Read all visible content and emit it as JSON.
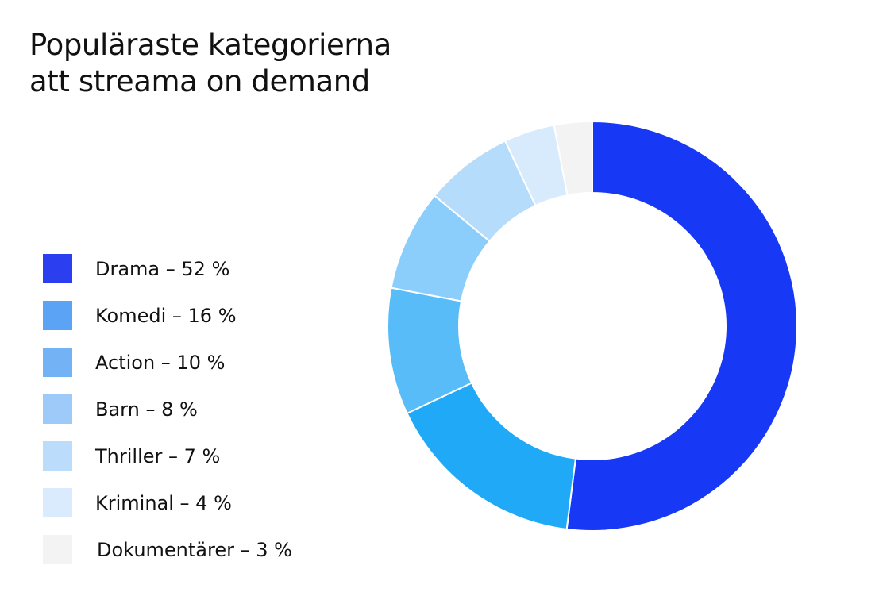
{
  "chart_data": {
    "type": "pie",
    "title": [
      "Populäraste kategorierna",
      "att streama on demand"
    ],
    "legend_position": "left",
    "donut": true,
    "slices": [
      {
        "label": "Drama – 52 %",
        "category": "Drama",
        "value": 52,
        "color": "#1738f5",
        "legend_color": "#2b3ff0"
      },
      {
        "label": "Komedi – 16 %",
        "category": "Komedi",
        "value": 16,
        "color": "#1fa9f7",
        "legend_color": "#5aa3f5"
      },
      {
        "label": "Action – 10 %",
        "category": "Action",
        "value": 10,
        "color": "#58bcf9",
        "legend_color": "#74b2f6"
      },
      {
        "label": "Barn – 8 %",
        "category": "Barn",
        "value": 8,
        "color": "#8bcdfb",
        "legend_color": "#9dcaf9"
      },
      {
        "label": "Thriller – 7 %",
        "category": "Thriller",
        "value": 7,
        "color": "#b6dcfc",
        "legend_color": "#bcdcfb"
      },
      {
        "label": "Kriminal – 4 %",
        "category": "Kriminal",
        "value": 4,
        "color": "#d7ebfd",
        "legend_color": "#d9ebfd"
      },
      {
        "label": "Dokumentärer – 3 %",
        "category": "Dokumentärer",
        "value": 3,
        "color": "#f3f3f3",
        "legend_color": "#f3f3f3"
      }
    ]
  }
}
